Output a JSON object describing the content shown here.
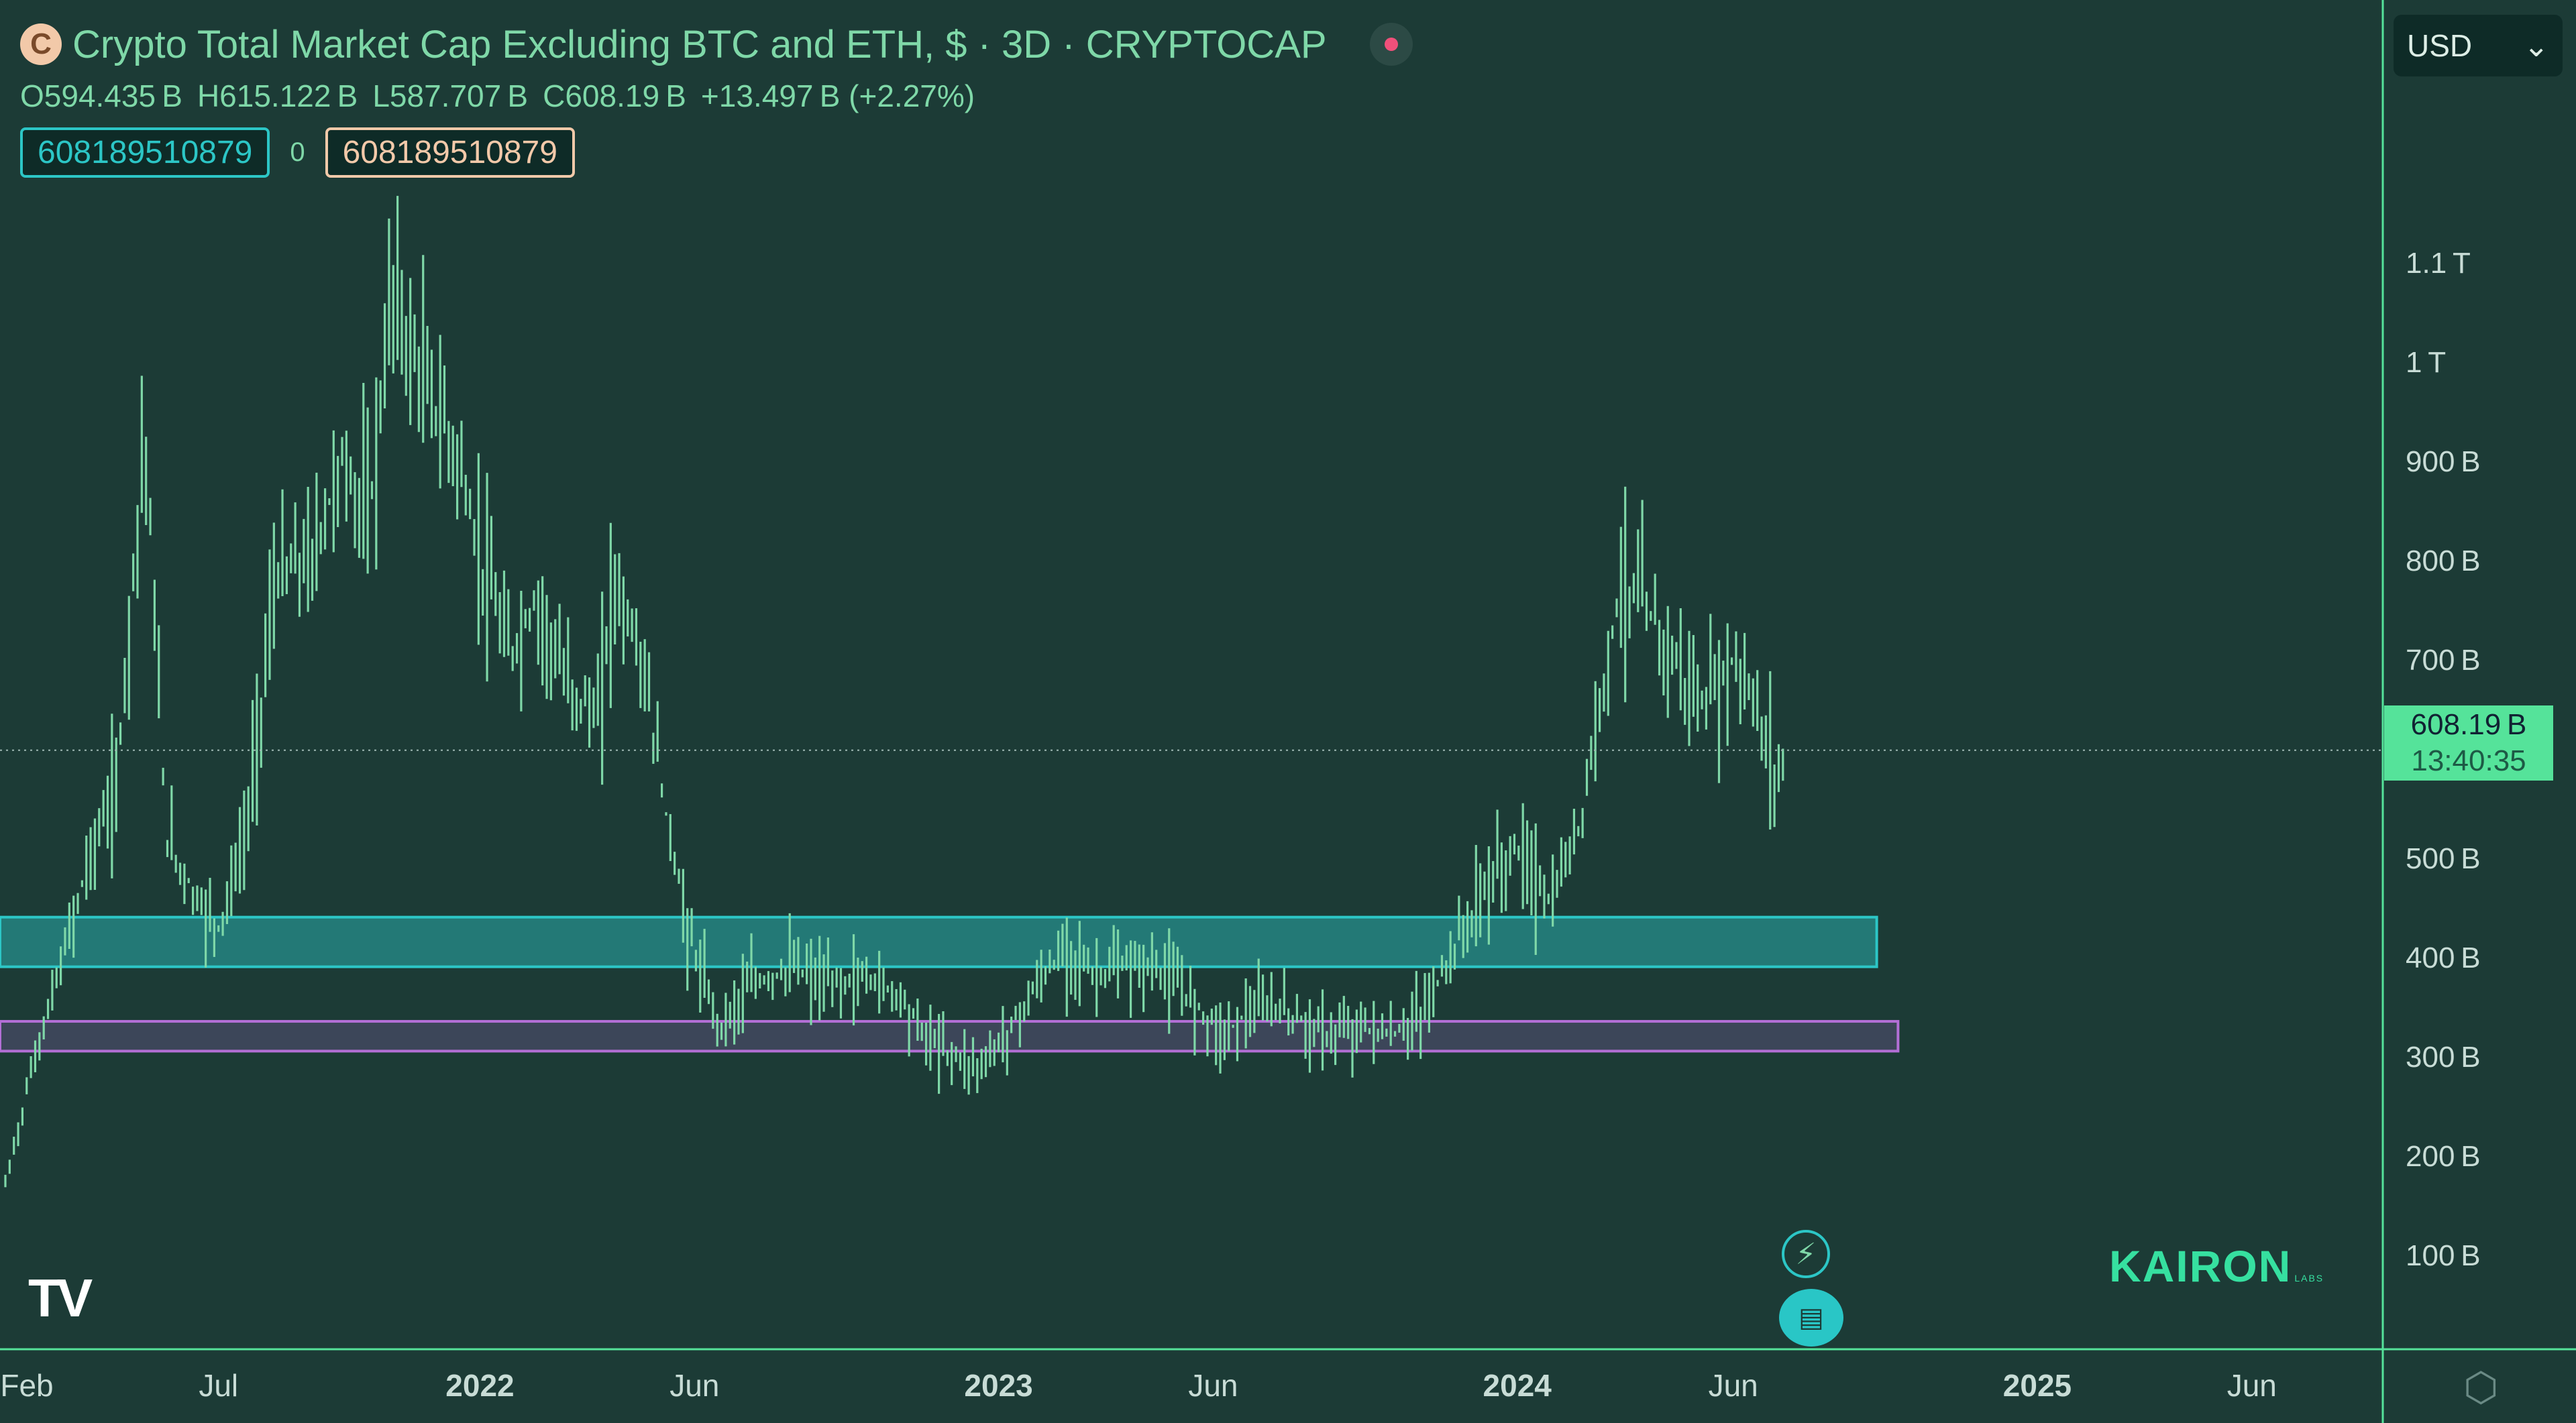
{
  "header": {
    "title": "Crypto Total Market Cap Excluding BTC and ETH, $ · 3D · CRYPTOCAP",
    "logo_glyph": "C",
    "ohlc": [
      "O594.435 B",
      "H615.122 B",
      "L587.707 B",
      "C608.19 B",
      "+13.497 B (+2.27%)"
    ],
    "value_box_left": "608189510879",
    "value_box_zero": "0",
    "value_box_right": "608189510879"
  },
  "currency": {
    "label": "USD",
    "chevron": "⌄"
  },
  "price_tag": {
    "price": "608.19 B",
    "countdown": "13:40:35"
  },
  "brand": {
    "name": "KAIRON",
    "sub": "LABS"
  },
  "tv_logo": "TV",
  "icons": {
    "bolt": "⚡",
    "flag": "▤",
    "settings": "⬡"
  },
  "colors": {
    "background": "#1c3b36",
    "candles": "#7fd8a8",
    "teal_zone": "#2cc6c6",
    "purple_zone": "#b36fd6",
    "axis_line": "#55e39a",
    "price_tag": "#55e39a"
  },
  "chart_data": {
    "type": "line",
    "style": "ohlc-bars",
    "y_scale": "linear",
    "ylim": [
      60000000000,
      1175000000000
    ],
    "y_ticks": [
      {
        "value": 1100000000000,
        "label": "1.1 T"
      },
      {
        "value": 1000000000000,
        "label": "1 T"
      },
      {
        "value": 900000000000,
        "label": "900 B"
      },
      {
        "value": 800000000000,
        "label": "800 B"
      },
      {
        "value": 700000000000,
        "label": "700 B"
      },
      {
        "value": 500000000000,
        "label": "500 B"
      },
      {
        "value": 400000000000,
        "label": "400 B"
      },
      {
        "value": 300000000000,
        "label": "300 B"
      },
      {
        "value": 200000000000,
        "label": "200 B"
      },
      {
        "value": 100000000000,
        "label": "100 B"
      }
    ],
    "xlim": [
      "2021-02-01",
      "2025-07-15"
    ],
    "x_ticks": [
      {
        "date": "2021-02-01",
        "label": "Feb",
        "bold": false
      },
      {
        "date": "2021-07-01",
        "label": "Jul",
        "bold": false
      },
      {
        "date": "2022-01-01",
        "label": "2022",
        "bold": true
      },
      {
        "date": "2022-06-01",
        "label": "Jun",
        "bold": false
      },
      {
        "date": "2023-01-01",
        "label": "2023",
        "bold": true
      },
      {
        "date": "2023-06-01",
        "label": "Jun",
        "bold": false
      },
      {
        "date": "2024-01-01",
        "label": "2024",
        "bold": true
      },
      {
        "date": "2024-06-01",
        "label": "Jun",
        "bold": false
      },
      {
        "date": "2025-01-01",
        "label": "2025",
        "bold": true
      },
      {
        "date": "2025-06-01",
        "label": "Jun",
        "bold": false
      }
    ],
    "last_price": 608190000000,
    "series": [
      {
        "x": [
          "2021-02-01",
          "2021-02-20",
          "2021-03-10",
          "2021-04-01",
          "2021-04-20",
          "2021-05-10",
          "2021-05-25",
          "2021-06-15",
          "2021-07-01",
          "2021-07-20",
          "2021-08-10",
          "2021-09-05",
          "2021-09-25",
          "2021-10-15",
          "2021-11-01",
          "2021-11-10",
          "2021-11-28",
          "2021-12-15",
          "2022-01-01",
          "2022-01-22",
          "2022-02-10",
          "2022-03-01",
          "2022-03-25",
          "2022-04-05",
          "2022-04-25",
          "2022-05-10",
          "2022-05-28",
          "2022-06-18",
          "2022-07-10",
          "2022-08-10",
          "2022-09-01",
          "2022-10-01",
          "2022-10-25",
          "2022-11-10",
          "2022-12-01",
          "2022-12-20",
          "2023-01-10",
          "2023-02-01",
          "2023-02-20",
          "2023-03-10",
          "2023-04-01",
          "2023-04-20",
          "2023-05-15",
          "2023-06-10",
          "2023-06-20",
          "2023-07-15",
          "2023-08-20",
          "2023-09-15",
          "2023-10-05",
          "2023-10-25",
          "2023-11-15",
          "2023-12-10",
          "2024-01-01",
          "2024-01-25",
          "2024-02-15",
          "2024-03-05",
          "2024-03-15",
          "2024-04-05",
          "2024-04-20",
          "2024-05-10",
          "2024-06-01",
          "2024-06-15",
          "2024-07-01",
          "2024-07-07"
        ],
        "values": [
          170,
          290,
          380,
          500,
          570,
          940,
          520,
          460,
          430,
          520,
          780,
          800,
          900,
          840,
          1080,
          1020,
          960,
          910,
          800,
          700,
          760,
          680,
          640,
          780,
          700,
          560,
          420,
          330,
          370,
          390,
          370,
          380,
          360,
          320,
          300,
          290,
          330,
          380,
          410,
          380,
          390,
          390,
          360,
          320,
          340,
          350,
          320,
          330,
          320,
          340,
          400,
          470,
          510,
          450,
          540,
          710,
          780,
          740,
          700,
          650,
          700,
          660,
          580,
          608
        ]
      }
    ],
    "zones": [
      {
        "name": "teal",
        "from": 390000000000,
        "to": 440000000000,
        "x_start": "2021-02-01",
        "x_end": "2024-09-10",
        "color": "#2cc6c6"
      },
      {
        "name": "purple",
        "from": 305000000000,
        "to": 335000000000,
        "x_start": "2021-02-01",
        "x_end": "2024-09-25",
        "color": "#b36fd6"
      }
    ]
  }
}
